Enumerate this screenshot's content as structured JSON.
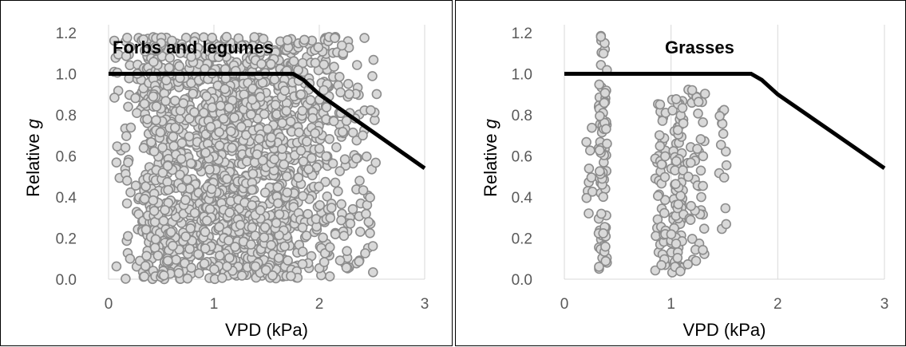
{
  "chart_data": [
    {
      "type": "scatter",
      "title": "Forbs and legumes",
      "xlabel": "VPD (kPa)",
      "ylabel_prefix": "Relative ",
      "ylabel_var": "g",
      "xlim": [
        0,
        3
      ],
      "ylim": [
        0,
        1.2
      ],
      "xticks": [
        "0",
        "1",
        "2",
        "3"
      ],
      "yticks": [
        "0.0",
        "0.2",
        "0.4",
        "0.6",
        "0.8",
        "1.0",
        "1.2"
      ],
      "grid": "vertical",
      "point_color": "#d9d9d9",
      "point_edge": "#8c8c8c",
      "series": [
        {
          "kind": "scatter",
          "clusters": [
            {
              "x": [
                0.05,
                0.12
              ],
              "n": 12
            },
            {
              "x": [
                0.15,
                0.22
              ],
              "n": 25
            },
            {
              "x": [
                0.25,
                0.33
              ],
              "n": 28
            },
            {
              "x": [
                0.33,
                0.42
              ],
              "n": 70
            },
            {
              "x": [
                0.42,
                0.9
              ],
              "n": 420
            },
            {
              "x": [
                0.9,
                1.35
              ],
              "n": 480
            },
            {
              "x": [
                1.35,
                1.8
              ],
              "n": 420
            },
            {
              "x": [
                1.8,
                2.1
              ],
              "n": 170
            },
            {
              "x": [
                2.1,
                2.4
              ],
              "n": 80
            },
            {
              "x": [
                2.4,
                2.55
              ],
              "n": 25
            }
          ],
          "y_range": [
            0.0,
            1.18
          ]
        },
        {
          "kind": "line",
          "x": [
            0,
            1.75,
            1.85,
            2.0,
            2.5,
            3.0
          ],
          "y": [
            1.0,
            1.0,
            0.97,
            0.9,
            0.72,
            0.54
          ]
        }
      ]
    },
    {
      "type": "scatter",
      "title": "Grasses",
      "xlabel": "VPD (kPa)",
      "ylabel_prefix": "Relative ",
      "ylabel_var": "g",
      "xlim": [
        0,
        3
      ],
      "ylim": [
        0,
        1.2
      ],
      "xticks": [
        "0",
        "1",
        "2",
        "3"
      ],
      "yticks": [
        "0.0",
        "0.2",
        "0.4",
        "0.6",
        "0.8",
        "1.0",
        "1.2"
      ],
      "grid": "vertical",
      "point_color": "#d9d9d9",
      "point_edge": "#8c8c8c",
      "series": [
        {
          "kind": "scatter",
          "clusters": [
            {
              "x": [
                0.2,
                0.28
              ],
              "n": 10,
              "y_range": [
                0.28,
                0.82
              ]
            },
            {
              "x": [
                0.32,
                0.4
              ],
              "n": 85,
              "y_range": [
                0.05,
                1.19
              ]
            },
            {
              "x": [
                0.85,
                0.95
              ],
              "n": 45,
              "y_range": [
                0.02,
                0.86
              ]
            },
            {
              "x": [
                1.0,
                1.12
              ],
              "n": 80,
              "y_range": [
                0.03,
                0.88
              ]
            },
            {
              "x": [
                1.15,
                1.32
              ],
              "n": 45,
              "y_range": [
                0.05,
                0.94
              ]
            },
            {
              "x": [
                1.45,
                1.52
              ],
              "n": 14,
              "y_range": [
                0.2,
                0.83
              ]
            }
          ]
        },
        {
          "kind": "line",
          "x": [
            0,
            1.75,
            1.85,
            2.0,
            2.5,
            3.0
          ],
          "y": [
            1.0,
            1.0,
            0.97,
            0.9,
            0.72,
            0.54
          ]
        }
      ]
    }
  ]
}
